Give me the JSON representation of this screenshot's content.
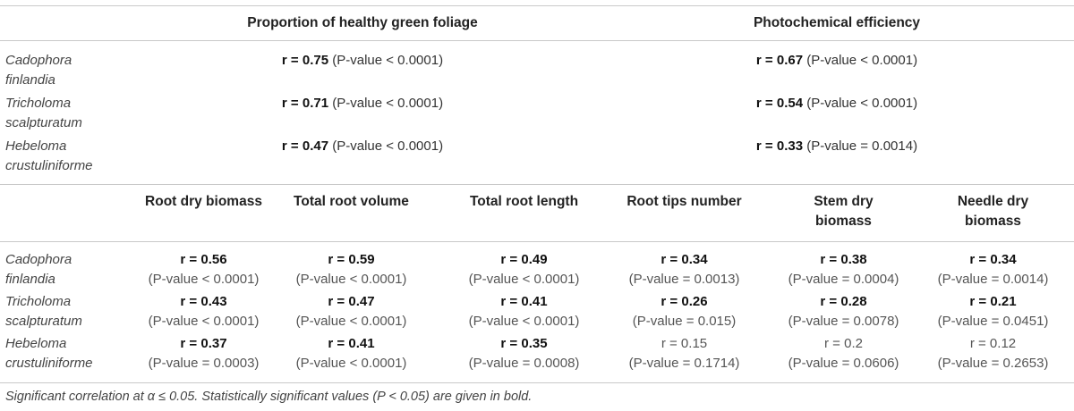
{
  "top": {
    "headers": [
      "Proportion of healthy green foliage",
      "Photochemical efficiency"
    ],
    "rows": [
      {
        "species": [
          "Cadophora",
          "finlandia"
        ],
        "cells": [
          {
            "r": "r = 0.75",
            "p": "(P-value < 0.0001)"
          },
          {
            "r": "r = 0.67",
            "p": "(P-value < 0.0001)"
          }
        ]
      },
      {
        "species": [
          "Tricholoma",
          "scalpturatum"
        ],
        "cells": [
          {
            "r": "r = 0.71",
            "p": "(P-value < 0.0001)"
          },
          {
            "r": "r = 0.54",
            "p": " (P-value < 0.0001)"
          }
        ]
      },
      {
        "species": [
          "Hebeloma",
          "crustuliniforme"
        ],
        "cells": [
          {
            "r": "r = 0.47",
            "p": "(P-value < 0.0001)"
          },
          {
            "r": "r = 0.33",
            "p": "(P-value = 0.0014)"
          }
        ]
      }
    ]
  },
  "bottom": {
    "headers": [
      [
        "Root dry biomass"
      ],
      [
        "Total root volume"
      ],
      [
        "Total root length"
      ],
      [
        "Root tips number"
      ],
      [
        "Stem dry",
        "biomass"
      ],
      [
        "Needle dry",
        "biomass"
      ]
    ],
    "rows": [
      {
        "species": [
          "Cadophora",
          "finlandia"
        ],
        "cells": [
          {
            "r": "r = 0.56",
            "p": "(P-value < 0.0001)",
            "sig": true
          },
          {
            "r": "r = 0.59",
            "p": "(P-value < 0.0001)",
            "sig": true
          },
          {
            "r": "r = 0.49",
            "p": "(P-value < 0.0001)",
            "sig": true
          },
          {
            "r": "r = 0.34",
            "p": "(P-value = 0.0013)",
            "sig": true
          },
          {
            "r": "r = 0.38",
            "p": "(P-value = 0.0004)",
            "sig": true
          },
          {
            "r": "r = 0.34",
            "p": "(P-value = 0.0014)",
            "sig": true
          }
        ]
      },
      {
        "species": [
          "Tricholoma",
          "scalpturatum"
        ],
        "cells": [
          {
            "r": "r = 0.43",
            "p": "(P-value < 0.0001)",
            "sig": true
          },
          {
            "r": "r = 0.47",
            "p": "(P-value < 0.0001)",
            "sig": true
          },
          {
            "r": "r = 0.41",
            "p": "(P-value < 0.0001)",
            "sig": true
          },
          {
            "r": "r = 0.26",
            "p": "(P-value = 0.015)",
            "sig": true
          },
          {
            "r": "r = 0.28",
            "p": "(P-value = 0.0078)",
            "sig": true
          },
          {
            "r": "r = 0.21",
            "p": "(P-value = 0.0451)",
            "sig": true
          }
        ]
      },
      {
        "species": [
          "Hebeloma",
          "crustuliniforme"
        ],
        "cells": [
          {
            "r": "r = 0.37",
            "p": "(P-value = 0.0003)",
            "sig": true
          },
          {
            "r": "r = 0.41",
            "p": "(P-value < 0.0001)",
            "sig": true
          },
          {
            "r": "r = 0.35",
            "p": "(P-value = 0.0008)",
            "sig": true
          },
          {
            "r": "r = 0.15",
            "p": "(P-value = 0.1714)",
            "sig": false
          },
          {
            "r": "r = 0.2",
            "p": "(P-value = 0.0606)",
            "sig": false
          },
          {
            "r": "r = 0.12",
            "p": "(P-value = 0.2653)",
            "sig": false
          }
        ]
      }
    ]
  },
  "footnote": "Significant correlation at α ≤ 0.05. Statistically significant values (P < 0.05) are given in bold."
}
